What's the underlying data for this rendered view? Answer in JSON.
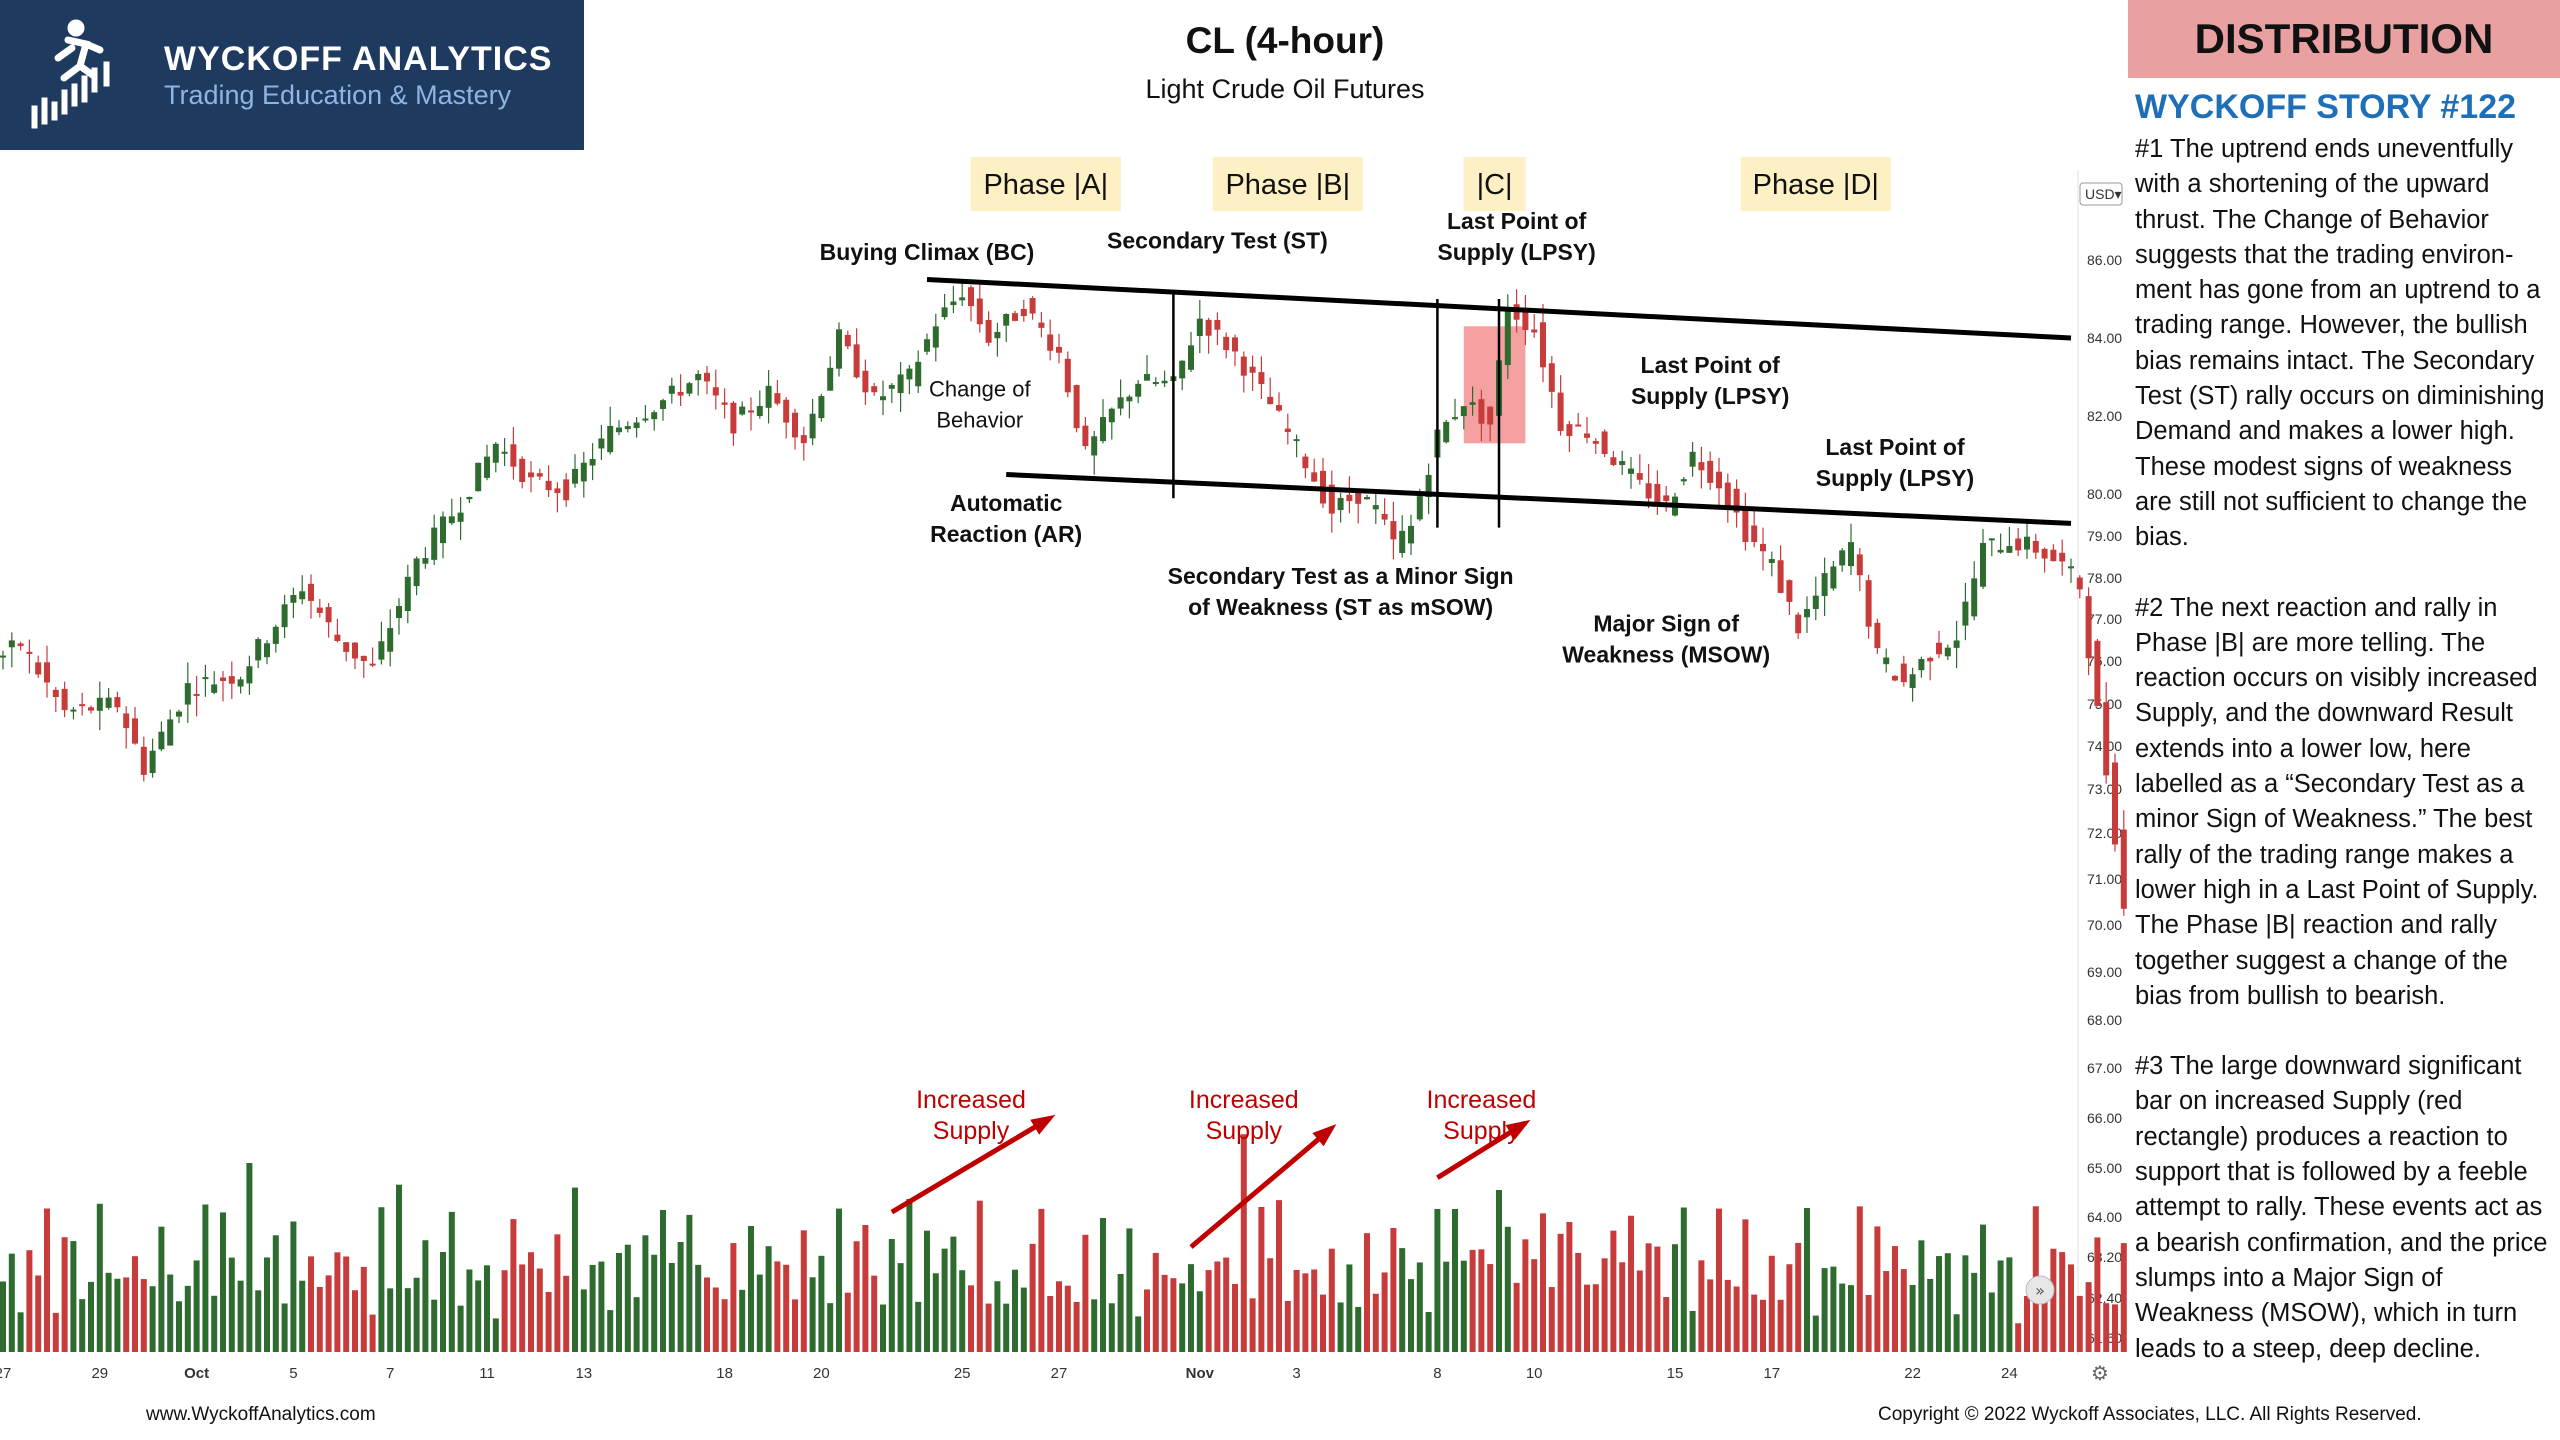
{
  "logo": {
    "name": "WYCKOFF ANALYTICS",
    "tagline": "Trading Education & Mastery",
    "icon": "runner-candlestick-icon"
  },
  "header": {
    "title": "CL (4-hour)",
    "subtitle": "Light Crude Oil Futures"
  },
  "right_panel": {
    "banner": "DISTRIBUTION",
    "story_title": "WYCKOFF STORY #122",
    "paragraphs": [
      "#1 The uptrend ends uneventfully with a shortening of the upward thrust. The Change of Behavior suggests that the trading environ-ment has gone from an uptrend to a trading range. However, the bullish bias remains intact. The Secondary Test (ST) rally occurs on diminishing Demand and makes a lower high. These modest signs of weakness are still not sufficient to change the bias.",
      "#2 The next reaction and rally in Phase |B| are more telling. The reaction occurs on visibly increased Supply, and the downward Result extends into a lower low, here labelled as a “Secondary Test as a minor Sign of Weakness.” The best rally of the trading range makes a lower high in a Last Point of Supply. The Phase |B| reaction and rally together suggest a change of the bias from bullish to bearish.",
      "#3 The large downward significant bar on increased Supply (red rectangle) produces a reaction to support that is followed by a feeble attempt to rally. These events act as a bearish confirmation, and the price slumps into a Major Sign of Weakness (MSOW), which in turn leads to a steep, deep decline."
    ]
  },
  "footer": {
    "left": "www.WyckoffAnalytics.com",
    "right": "Copyright © 2022 Wyckoff Associates, LLC. All Rights Reserved."
  },
  "colors": {
    "up": "#2e6b2e",
    "down": "#c83b3b",
    "phase_bg": "#fdf0c4",
    "arrow": "#c00000",
    "highlight": "#f08080"
  },
  "chart_data": {
    "type": "candlestick",
    "currency": "USD",
    "y_range": [
      61.6,
      87.0
    ],
    "y_ticks": [
      "86.00",
      "84.00",
      "82.00",
      "80.00",
      "79.00",
      "78.00",
      "77.00",
      "76.00",
      "75.00",
      "74.00",
      "73.00",
      "72.00",
      "71.00",
      "70.00",
      "69.00",
      "68.00",
      "67.00",
      "66.00",
      "65.00",
      "64.00",
      "63.20",
      "62.40",
      "61.60"
    ],
    "x_ticks": [
      {
        "label": "27",
        "bar": 0
      },
      {
        "label": "29",
        "bar": 11
      },
      {
        "label": "Oct",
        "bar": 22
      },
      {
        "label": "5",
        "bar": 33
      },
      {
        "label": "7",
        "bar": 44
      },
      {
        "label": "11",
        "bar": 55
      },
      {
        "label": "13",
        "bar": 66
      },
      {
        "label": "18",
        "bar": 82
      },
      {
        "label": "20",
        "bar": 93
      },
      {
        "label": "25",
        "bar": 109
      },
      {
        "label": "27",
        "bar": 120
      },
      {
        "label": "Nov",
        "bar": 136
      },
      {
        "label": "3",
        "bar": 147
      },
      {
        "label": "8",
        "bar": 163
      },
      {
        "label": "10",
        "bar": 174
      },
      {
        "label": "15",
        "bar": 190
      },
      {
        "label": "17",
        "bar": 201
      },
      {
        "label": "22",
        "bar": 217
      },
      {
        "label": "24",
        "bar": 228
      }
    ],
    "path": [
      [
        0,
        76.0
      ],
      [
        3,
        76.4
      ],
      [
        8,
        74.8
      ],
      [
        14,
        75.0
      ],
      [
        17,
        73.5
      ],
      [
        22,
        75.4
      ],
      [
        28,
        75.7
      ],
      [
        35,
        77.8
      ],
      [
        39,
        76.5
      ],
      [
        43,
        75.8
      ],
      [
        48,
        78.4
      ],
      [
        53,
        79.8
      ],
      [
        57,
        81.3
      ],
      [
        61,
        80.3
      ],
      [
        65,
        80.1
      ],
      [
        70,
        81.6
      ],
      [
        76,
        82.4
      ],
      [
        80,
        83.0
      ],
      [
        84,
        81.8
      ],
      [
        88,
        82.6
      ],
      [
        92,
        81.4
      ],
      [
        96,
        84.0
      ],
      [
        100,
        82.4
      ],
      [
        104,
        83.0
      ],
      [
        107,
        84.4
      ],
      [
        110,
        85.2
      ],
      [
        113,
        84.0
      ],
      [
        117,
        84.8
      ],
      [
        121,
        83.6
      ],
      [
        124,
        81.0
      ],
      [
        127,
        82.1
      ],
      [
        130,
        82.9
      ],
      [
        134,
        82.8
      ],
      [
        137,
        84.5
      ],
      [
        141,
        83.6
      ],
      [
        145,
        82.3
      ],
      [
        149,
        80.8
      ],
      [
        152,
        79.6
      ],
      [
        155,
        80.0
      ],
      [
        157,
        79.6
      ],
      [
        159,
        78.8
      ],
      [
        161,
        79.2
      ],
      [
        164,
        81.5
      ],
      [
        167,
        82.4
      ],
      [
        170,
        81.8
      ],
      [
        172,
        84.8
      ],
      [
        175,
        84.2
      ],
      [
        178,
        81.8
      ],
      [
        181,
        81.6
      ],
      [
        184,
        80.9
      ],
      [
        187,
        80.2
      ],
      [
        190,
        79.7
      ],
      [
        193,
        81.0
      ],
      [
        196,
        80.3
      ],
      [
        199,
        79.1
      ],
      [
        202,
        78.3
      ],
      [
        205,
        76.8
      ],
      [
        208,
        77.9
      ],
      [
        211,
        78.8
      ],
      [
        214,
        76.1
      ],
      [
        217,
        75.5
      ],
      [
        220,
        76.2
      ],
      [
        223,
        76.6
      ],
      [
        226,
        78.7
      ],
      [
        229,
        78.9
      ],
      [
        232,
        78.7
      ],
      [
        235,
        78.3
      ],
      [
        237,
        77.8
      ],
      [
        239,
        74.8
      ],
      [
        241,
        72.0
      ],
      [
        243,
        68.7
      ],
      [
        245,
        71.5
      ],
      [
        247,
        71.8
      ]
    ],
    "volume_pattern": [
      0.22,
      0.35,
      0.18,
      0.48,
      0.27,
      0.62,
      0.19,
      0.33,
      0.41,
      0.15,
      0.29,
      0.55,
      0.21,
      0.38,
      0.24,
      0.45,
      0.17,
      0.31,
      0.5,
      0.26
    ],
    "phases": [
      {
        "label": "Phase |A|",
        "bar_start": 109,
        "bar_end": 128
      },
      {
        "label": "Phase |B|",
        "bar_start": 128,
        "bar_end": 164
      },
      {
        "label": "|C|",
        "bar_start": 164,
        "bar_end": 175
      },
      {
        "label": "Phase |D|",
        "bar_start": 175,
        "bar_end": 237
      }
    ],
    "annotations": [
      {
        "text": [
          "Buying Climax (BC)"
        ],
        "bar": 105,
        "price": 86.0,
        "bold": true
      },
      {
        "text": [
          "Secondary Test (ST)"
        ],
        "bar": 138,
        "price": 86.3,
        "bold": true
      },
      {
        "text": [
          "Last Point of",
          "Supply (LPSY)"
        ],
        "bar": 172,
        "price": 86.8,
        "bold": true
      },
      {
        "text": [
          "Change of",
          "Behavior"
        ],
        "bar": 111,
        "price": 82.5,
        "bold": false
      },
      {
        "text": [
          "Automatic",
          "Reaction (AR)"
        ],
        "bar": 114,
        "price": 79.6,
        "bold": true
      },
      {
        "text": [
          "Secondary Test as a Minor Sign",
          "of Weakness (ST as mSOW)"
        ],
        "bar": 152,
        "price": 77.85,
        "bold": true
      },
      {
        "text": [
          "Last Point of",
          "Supply (LPSY)"
        ],
        "bar": 194,
        "price": 83.1,
        "bold": true
      },
      {
        "text": [
          "Last Point of",
          "Supply (LPSY)"
        ],
        "bar": 215,
        "price": 81.0,
        "bold": true
      },
      {
        "text": [
          "Major Sign of",
          "Weakness (MSOW)"
        ],
        "bar": 189,
        "price": 76.7,
        "bold": true
      },
      {
        "text": [
          "Increased",
          "Supply"
        ],
        "bar": 110,
        "price": 66.2,
        "bold": false,
        "red": true
      },
      {
        "text": [
          "Increased",
          "Supply"
        ],
        "bar": 141,
        "price": 66.2,
        "bold": false,
        "red": true
      },
      {
        "text": [
          "Increased",
          "Supply"
        ],
        "bar": 168,
        "price": 66.2,
        "bold": false,
        "red": true
      }
    ],
    "trendlines": [
      [
        105,
        85.5,
        235,
        84.0
      ],
      [
        114,
        80.5,
        235,
        79.3
      ]
    ],
    "vertical_lines": [
      [
        133,
        85.2,
        79.9
      ],
      [
        163,
        85.0,
        79.2
      ],
      [
        170,
        85.0,
        79.2
      ]
    ],
    "supply_arrows": [
      [
        101,
        64.1,
        119,
        66.0
      ],
      [
        135,
        63.4,
        151,
        65.8
      ],
      [
        163,
        64.8,
        173,
        65.9
      ]
    ],
    "highlight_box": [
      166,
      173,
      84.3,
      81.3
    ]
  }
}
